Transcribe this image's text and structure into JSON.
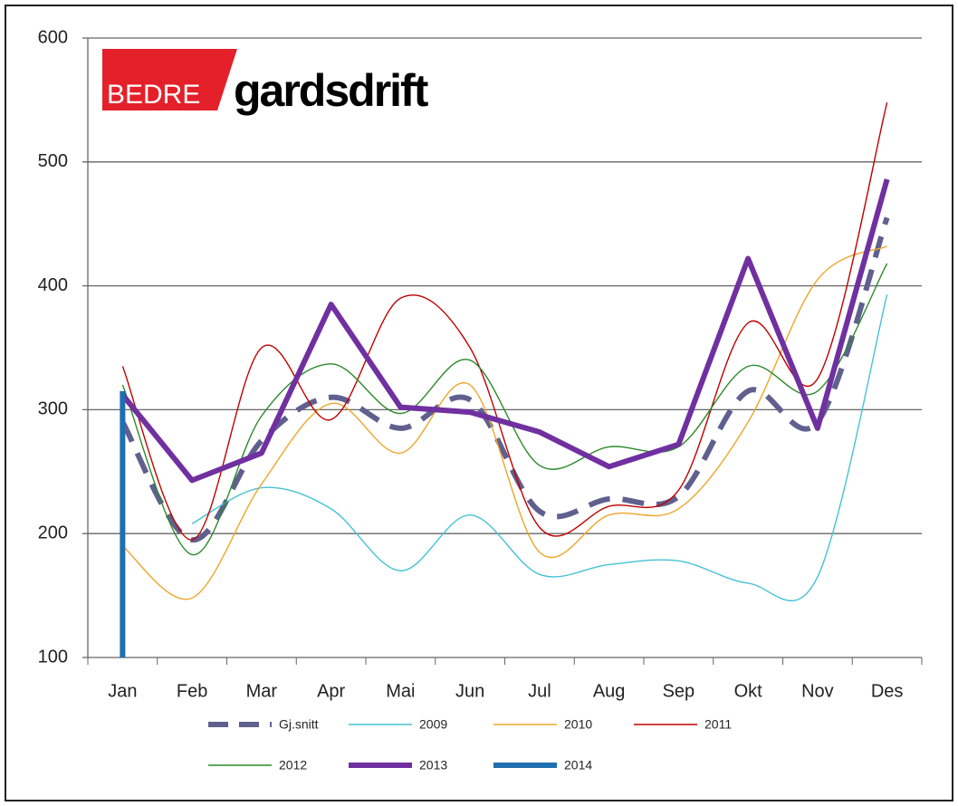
{
  "chart_data": {
    "type": "line",
    "logo": {
      "part1": "BEDRE",
      "part2": "gardsdrift"
    },
    "categories": [
      "Jan",
      "Feb",
      "Mar",
      "Apr",
      "Mai",
      "Jun",
      "Jul",
      "Aug",
      "Sep",
      "Okt",
      "Nov",
      "Des"
    ],
    "ylim": [
      100,
      600
    ],
    "yticks": [
      100,
      200,
      300,
      400,
      500,
      600
    ],
    "grid": true,
    "legend": "bottom",
    "series": [
      {
        "name": "Gj.snitt",
        "color": "#60608f",
        "dashed": true,
        "smooth": true,
        "values": [
          290,
          195,
          275,
          310,
          285,
          308,
          218,
          228,
          230,
          315,
          290,
          455
        ]
      },
      {
        "name": "2009",
        "color": "#45c3d3",
        "smooth": true,
        "values": [
          null,
          208,
          237,
          220,
          170,
          215,
          167,
          175,
          178,
          160,
          165,
          393
        ]
      },
      {
        "name": "2010",
        "color": "#eea62c",
        "smooth": true,
        "values": [
          190,
          148,
          240,
          305,
          265,
          320,
          185,
          215,
          220,
          290,
          405,
          432
        ]
      },
      {
        "name": "2011",
        "color": "#c00000",
        "smooth": true,
        "values": [
          335,
          195,
          350,
          292,
          390,
          350,
          205,
          222,
          235,
          370,
          325,
          548
        ]
      },
      {
        "name": "2012",
        "color": "#2b8a2b",
        "smooth": true,
        "values": [
          320,
          183,
          295,
          337,
          297,
          340,
          255,
          270,
          270,
          335,
          315,
          418
        ]
      },
      {
        "name": "2013",
        "color": "#7030a0",
        "smooth": false,
        "values": [
          312,
          243,
          265,
          385,
          302,
          298,
          282,
          254,
          272,
          422,
          285,
          486
        ]
      },
      {
        "name": "2014",
        "color": "#1f6eb0",
        "smooth": false,
        "values": [
          315,
          null,
          null,
          null,
          null,
          null,
          null,
          null,
          null,
          null,
          null,
          null
        ]
      }
    ]
  }
}
